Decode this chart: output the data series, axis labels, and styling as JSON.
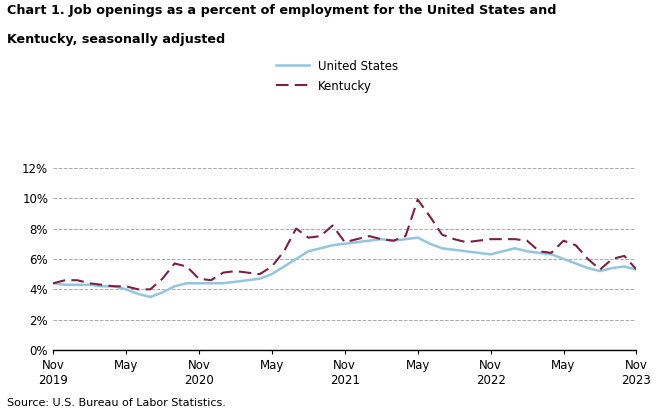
{
  "title_line1": "Chart 1. Job openings as a percent of employment for the United States and",
  "title_line2": "Kentucky, seasonally adjusted",
  "source": "Source: U.S. Bureau of Labor Statistics.",
  "us_label": "United States",
  "ky_label": "Kentucky",
  "us_color": "#92C5DE",
  "ky_color": "#7B2044",
  "ylim": [
    0,
    0.13
  ],
  "yticks": [
    0.0,
    0.02,
    0.04,
    0.06,
    0.08,
    0.1,
    0.12
  ],
  "ytick_labels": [
    "0%",
    "2%",
    "4%",
    "6%",
    "8%",
    "10%",
    "12%"
  ],
  "x_tick_positions": [
    0,
    6,
    12,
    18,
    24,
    30,
    36,
    42,
    48
  ],
  "x_tick_labels": [
    "Nov\n2019",
    "May",
    "Nov\n2020",
    "May",
    "Nov\n2021",
    "May",
    "Nov\n2022",
    "May",
    "Nov\n2023"
  ],
  "us_data": [
    0.044,
    0.043,
    0.043,
    0.043,
    0.042,
    0.042,
    0.04,
    0.037,
    0.035,
    0.038,
    0.042,
    0.044,
    0.044,
    0.044,
    0.044,
    0.045,
    0.046,
    0.047,
    0.05,
    0.055,
    0.06,
    0.065,
    0.067,
    0.069,
    0.07,
    0.071,
    0.072,
    0.073,
    0.072,
    0.073,
    0.074,
    0.07,
    0.067,
    0.066,
    0.065,
    0.064,
    0.063,
    0.065,
    0.067,
    0.065,
    0.064,
    0.063,
    0.06,
    0.057,
    0.054,
    0.052,
    0.054,
    0.055,
    0.053
  ],
  "ky_data": [
    0.044,
    0.046,
    0.046,
    0.044,
    0.043,
    0.042,
    0.042,
    0.04,
    0.04,
    0.047,
    0.057,
    0.055,
    0.047,
    0.046,
    0.051,
    0.052,
    0.051,
    0.05,
    0.055,
    0.065,
    0.08,
    0.074,
    0.075,
    0.082,
    0.071,
    0.073,
    0.075,
    0.073,
    0.072,
    0.075,
    0.099,
    0.088,
    0.076,
    0.073,
    0.071,
    0.072,
    0.073,
    0.073,
    0.073,
    0.072,
    0.065,
    0.064,
    0.072,
    0.069,
    0.06,
    0.053,
    0.06,
    0.062,
    0.053
  ]
}
